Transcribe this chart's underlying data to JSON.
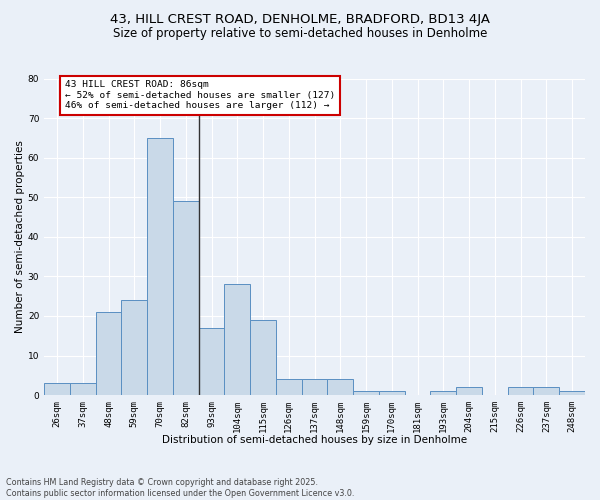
{
  "title_line1": "43, HILL CREST ROAD, DENHOLME, BRADFORD, BD13 4JA",
  "title_line2": "Size of property relative to semi-detached houses in Denholme",
  "xlabel": "Distribution of semi-detached houses by size in Denholme",
  "ylabel": "Number of semi-detached properties",
  "footnote": "Contains HM Land Registry data © Crown copyright and database right 2025.\nContains public sector information licensed under the Open Government Licence v3.0.",
  "bin_labels": [
    "26sqm",
    "37sqm",
    "48sqm",
    "59sqm",
    "70sqm",
    "82sqm",
    "93sqm",
    "104sqm",
    "115sqm",
    "126sqm",
    "137sqm",
    "148sqm",
    "159sqm",
    "170sqm",
    "181sqm",
    "193sqm",
    "204sqm",
    "215sqm",
    "226sqm",
    "237sqm",
    "248sqm"
  ],
  "bar_values": [
    3,
    3,
    21,
    24,
    65,
    49,
    17,
    28,
    19,
    4,
    4,
    4,
    1,
    1,
    0,
    1,
    2,
    0,
    2,
    2,
    1
  ],
  "bar_color": "#c9d9e8",
  "bar_edge_color": "#5a8fc2",
  "highlight_bin_index": 5,
  "highlight_line_color": "#333333",
  "annotation_text": "43 HILL CREST ROAD: 86sqm\n← 52% of semi-detached houses are smaller (127)\n46% of semi-detached houses are larger (112) →",
  "annotation_box_color": "#ffffff",
  "annotation_box_edge_color": "#cc0000",
  "ylim": [
    0,
    80
  ],
  "yticks": [
    0,
    10,
    20,
    30,
    40,
    50,
    60,
    70,
    80
  ],
  "background_color": "#eaf0f8",
  "plot_background_color": "#eaf0f8",
  "grid_color": "#ffffff",
  "title_fontsize": 9.5,
  "subtitle_fontsize": 8.5,
  "axis_label_fontsize": 7.5,
  "tick_fontsize": 6.5,
  "annotation_fontsize": 6.8,
  "footnote_fontsize": 5.8
}
